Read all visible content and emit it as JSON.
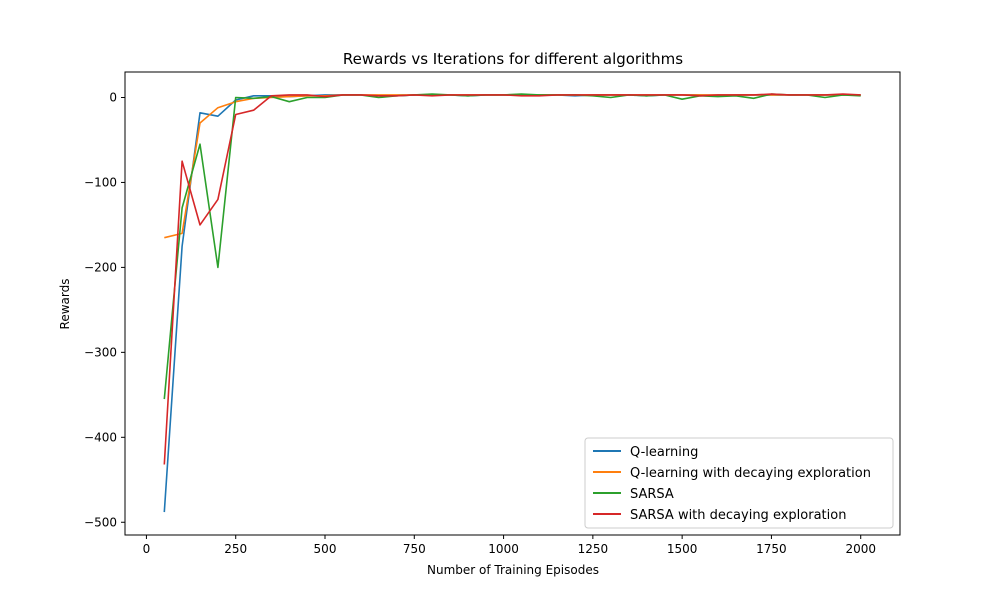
{
  "chart_data": {
    "type": "line",
    "title": "Rewards vs Iterations for different algorithms",
    "xlabel": "Number of Training Episodes",
    "ylabel": "Rewards",
    "xlim": [
      -60,
      2110
    ],
    "ylim": [
      -515,
      30
    ],
    "xticks": [
      0,
      250,
      500,
      750,
      1000,
      1250,
      1500,
      1750,
      2000
    ],
    "yticks": [
      0,
      -100,
      -200,
      -300,
      -400,
      -500
    ],
    "xtick_labels": [
      "0",
      "250",
      "500",
      "750",
      "1000",
      "1250",
      "1500",
      "1750",
      "2000"
    ],
    "ytick_labels": [
      "0",
      "−100",
      "−200",
      "−300",
      "−400",
      "−500"
    ],
    "legend_position": "lower-right",
    "x": [
      50,
      100,
      150,
      200,
      250,
      300,
      350,
      400,
      450,
      500,
      550,
      600,
      650,
      700,
      750,
      800,
      850,
      900,
      950,
      1000,
      1050,
      1100,
      1150,
      1200,
      1250,
      1300,
      1350,
      1400,
      1450,
      1500,
      1550,
      1600,
      1650,
      1700,
      1750,
      1800,
      1850,
      1900,
      1950,
      2000
    ],
    "series": [
      {
        "name": "Q-learning",
        "color": "#1f77b4",
        "values": [
          -488,
          -175,
          -18,
          -22,
          -3,
          2,
          2,
          1,
          2,
          3,
          3,
          3,
          2,
          2,
          3,
          3,
          3,
          2,
          3,
          3,
          3,
          3,
          3,
          2,
          3,
          3,
          3,
          2,
          3,
          3,
          3,
          2,
          3,
          3,
          3,
          3,
          3,
          3,
          3,
          3
        ]
      },
      {
        "name": "Q-learning with decaying exploration",
        "color": "#ff7f0e",
        "values": [
          -165,
          -160,
          -30,
          -12,
          -5,
          -1,
          0,
          1,
          2,
          2,
          3,
          3,
          3,
          3,
          3,
          3,
          3,
          3,
          3,
          3,
          3,
          3,
          3,
          3,
          3,
          3,
          3,
          3,
          3,
          3,
          3,
          3,
          3,
          3,
          3,
          3,
          3,
          3,
          3,
          3
        ]
      },
      {
        "name": "SARSA",
        "color": "#2ca02c",
        "values": [
          -355,
          -130,
          -55,
          -200,
          0,
          -1,
          1,
          -5,
          0,
          0,
          3,
          3,
          0,
          2,
          3,
          4,
          3,
          2,
          3,
          3,
          4,
          3,
          3,
          3,
          2,
          0,
          3,
          2,
          3,
          -2,
          2,
          1,
          2,
          -1,
          4,
          3,
          3,
          0,
          3,
          2
        ]
      },
      {
        "name": "SARSA with decaying exploration",
        "color": "#d62728",
        "values": [
          -432,
          -75,
          -150,
          -120,
          -20,
          -15,
          2,
          3,
          3,
          1,
          3,
          3,
          2,
          2,
          3,
          2,
          3,
          3,
          3,
          3,
          2,
          2,
          3,
          3,
          3,
          3,
          3,
          3,
          3,
          3,
          2,
          3,
          3,
          3,
          4,
          3,
          3,
          3,
          4,
          3
        ]
      }
    ]
  }
}
